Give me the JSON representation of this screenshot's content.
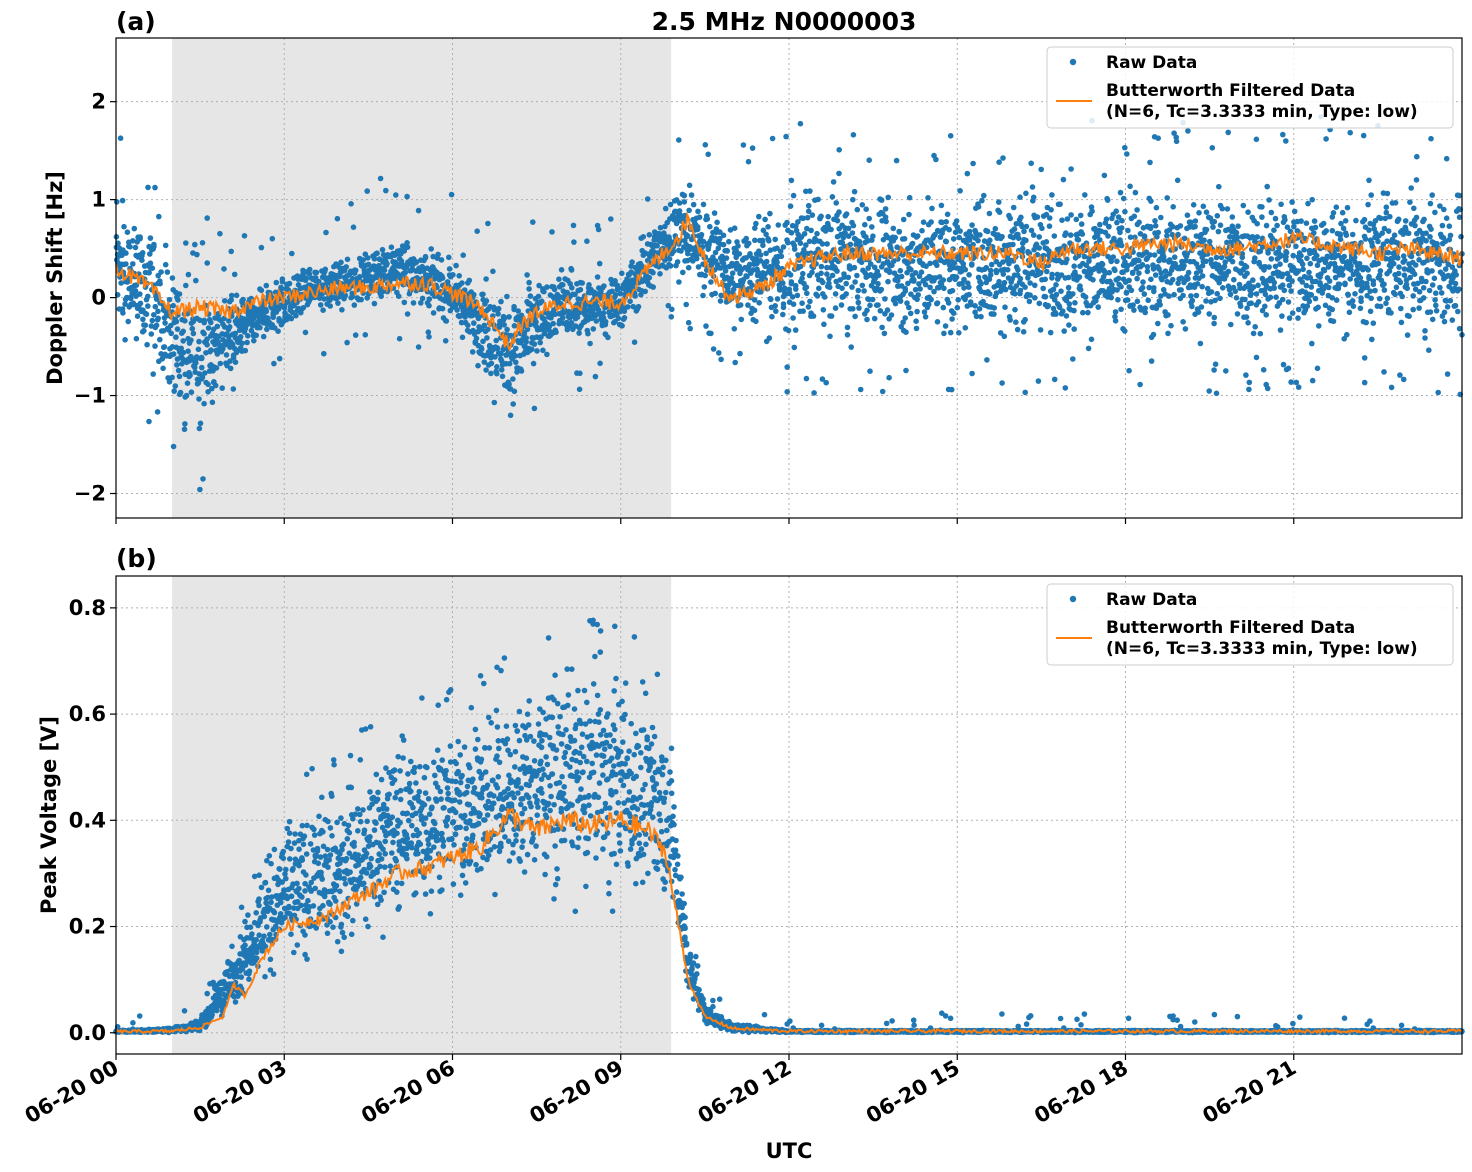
{
  "title": "2.5 MHz N0000003",
  "xlabel": "UTC",
  "x_ticks": [
    "06-20 00",
    "06-20 03",
    "06-20 06",
    "06-20 09",
    "06-20 12",
    "06-20 15",
    "06-20 18",
    "06-20 21"
  ],
  "colors": {
    "raw": "#1f77b4",
    "filtered": "#ff7f0e",
    "night_shade": "#e6e6e6"
  },
  "legend": {
    "raw_label": "Raw Data",
    "filtered_line1": "Butterworth Filtered Data",
    "filtered_line2": "(N=6, Tc=3.3333 min, Type: low)"
  },
  "chart_data": [
    {
      "type": "scatter",
      "panel_label": "(a)",
      "ylabel": "Doppler Shift [Hz]",
      "y_ticks": [
        "2",
        "1",
        "0",
        "−1",
        "−2"
      ],
      "xlim": [
        0,
        24
      ],
      "ylim": [
        -2.25,
        2.65
      ],
      "x_unit": "hours UTC on 06-20",
      "shaded_interval": [
        1.0,
        9.9
      ],
      "grid": true,
      "legend_position": "top-right",
      "series": [
        {
          "name": "Raw Data",
          "kind": "scatter",
          "x": [
            0,
            0.5,
            1.0,
            1.5,
            2.0,
            2.5,
            3.0,
            3.5,
            4.0,
            4.5,
            5.0,
            5.5,
            6.0,
            6.5,
            7.0,
            7.5,
            8.0,
            8.5,
            9.0,
            9.5,
            10.0,
            10.5,
            11.0,
            11.5,
            12.0,
            13.0,
            14.0,
            15.0,
            16.0,
            17.0,
            18.0,
            19.0,
            20.0,
            21.0,
            22.0,
            23.0,
            24.0
          ],
          "y_min": [
            -0.6,
            -0.8,
            -1.3,
            -1.6,
            -0.9,
            -0.6,
            -0.4,
            -0.2,
            -0.2,
            -0.2,
            -0.1,
            -0.2,
            -0.4,
            -0.8,
            -1.3,
            -0.8,
            -0.5,
            -0.6,
            -0.5,
            -0.1,
            0.2,
            -0.2,
            -0.4,
            -0.6,
            -0.7,
            -0.6,
            -0.7,
            -0.6,
            -0.6,
            -0.6,
            -0.6,
            -0.6,
            -0.6,
            -0.6,
            -0.6,
            -0.6,
            -0.7
          ],
          "y_max": [
            1.3,
            1.0,
            0.6,
            0.3,
            0.2,
            0.2,
            0.3,
            0.4,
            0.5,
            0.6,
            0.7,
            0.6,
            0.5,
            0.3,
            0.2,
            0.3,
            0.4,
            0.4,
            0.4,
            0.8,
            1.3,
            1.2,
            0.9,
            1.2,
            1.3,
            1.4,
            1.3,
            1.3,
            1.3,
            1.3,
            1.3,
            1.3,
            1.3,
            1.3,
            1.3,
            1.3,
            1.4
          ]
        },
        {
          "name": "Butterworth Filtered Data (N=6, Tc=3.3333 min, Type: low)",
          "kind": "line",
          "x": [
            0,
            0.3,
            0.6,
            1.0,
            1.5,
            2.0,
            2.5,
            3.0,
            3.5,
            4.0,
            4.5,
            5.0,
            5.5,
            6.0,
            6.5,
            6.9,
            7.0,
            7.2,
            7.5,
            8.0,
            8.5,
            9.0,
            9.5,
            10.0,
            10.2,
            10.5,
            10.8,
            11.0,
            11.5,
            12.0,
            12.5,
            13.0,
            13.5,
            14.0,
            14.5,
            15.0,
            15.5,
            16.0,
            16.5,
            17.0,
            17.5,
            18.0,
            18.5,
            19.0,
            19.5,
            20.0,
            20.5,
            21.0,
            21.5,
            22.0,
            22.5,
            23.0,
            23.5,
            24.0
          ],
          "y": [
            0.3,
            0.2,
            0.1,
            -0.15,
            -0.1,
            -0.15,
            -0.05,
            0.0,
            0.05,
            0.1,
            0.1,
            0.15,
            0.15,
            0.05,
            -0.1,
            -0.4,
            -0.5,
            -0.3,
            -0.15,
            -0.05,
            -0.05,
            -0.05,
            0.3,
            0.6,
            0.8,
            0.4,
            0.1,
            0.0,
            0.1,
            0.3,
            0.4,
            0.45,
            0.45,
            0.45,
            0.45,
            0.45,
            0.45,
            0.45,
            0.35,
            0.5,
            0.5,
            0.5,
            0.55,
            0.55,
            0.5,
            0.5,
            0.55,
            0.6,
            0.55,
            0.5,
            0.45,
            0.5,
            0.45,
            0.4
          ]
        }
      ]
    },
    {
      "type": "scatter",
      "panel_label": "(b)",
      "ylabel": "Peak Voltage [V]",
      "y_ticks": [
        "0.8",
        "0.6",
        "0.4",
        "0.2",
        "0.0"
      ],
      "xlim": [
        0,
        24
      ],
      "ylim": [
        -0.04,
        0.86
      ],
      "x_unit": "hours UTC on 06-20",
      "shaded_interval": [
        1.0,
        9.9
      ],
      "grid": true,
      "legend_position": "top-right",
      "series": [
        {
          "name": "Raw Data",
          "kind": "scatter",
          "x": [
            0,
            1.0,
            1.5,
            2.0,
            2.5,
            3.0,
            3.5,
            4.0,
            4.5,
            5.0,
            5.5,
            6.0,
            6.5,
            7.0,
            7.5,
            8.0,
            8.5,
            9.0,
            9.5,
            9.9,
            10.2,
            10.5,
            11.0,
            12.0,
            24.0
          ],
          "y_min": [
            0.0,
            0.0,
            0.0,
            0.02,
            0.07,
            0.09,
            0.1,
            0.12,
            0.14,
            0.16,
            0.18,
            0.2,
            0.22,
            0.24,
            0.22,
            0.22,
            0.2,
            0.2,
            0.2,
            0.18,
            0.05,
            0.01,
            0.0,
            0.0,
            0.0
          ],
          "y_max": [
            0.005,
            0.01,
            0.03,
            0.16,
            0.3,
            0.45,
            0.48,
            0.5,
            0.55,
            0.6,
            0.6,
            0.62,
            0.65,
            0.68,
            0.7,
            0.75,
            0.75,
            0.75,
            0.68,
            0.6,
            0.2,
            0.06,
            0.02,
            0.005,
            0.005
          ]
        },
        {
          "name": "Butterworth Filtered Data (N=6, Tc=3.3333 min, Type: low)",
          "kind": "line",
          "x": [
            0,
            1.0,
            1.5,
            1.9,
            2.1,
            2.3,
            2.6,
            3.0,
            3.4,
            3.8,
            4.2,
            4.6,
            5.0,
            5.5,
            6.0,
            6.5,
            7.0,
            7.5,
            8.0,
            8.5,
            9.0,
            9.5,
            9.8,
            10.0,
            10.2,
            10.5,
            11.0,
            12.0,
            24.0
          ],
          "y": [
            0.002,
            0.003,
            0.01,
            0.03,
            0.09,
            0.07,
            0.14,
            0.2,
            0.21,
            0.22,
            0.25,
            0.27,
            0.3,
            0.31,
            0.33,
            0.35,
            0.41,
            0.38,
            0.4,
            0.39,
            0.4,
            0.38,
            0.34,
            0.22,
            0.1,
            0.03,
            0.008,
            0.003,
            0.003
          ]
        }
      ]
    }
  ]
}
